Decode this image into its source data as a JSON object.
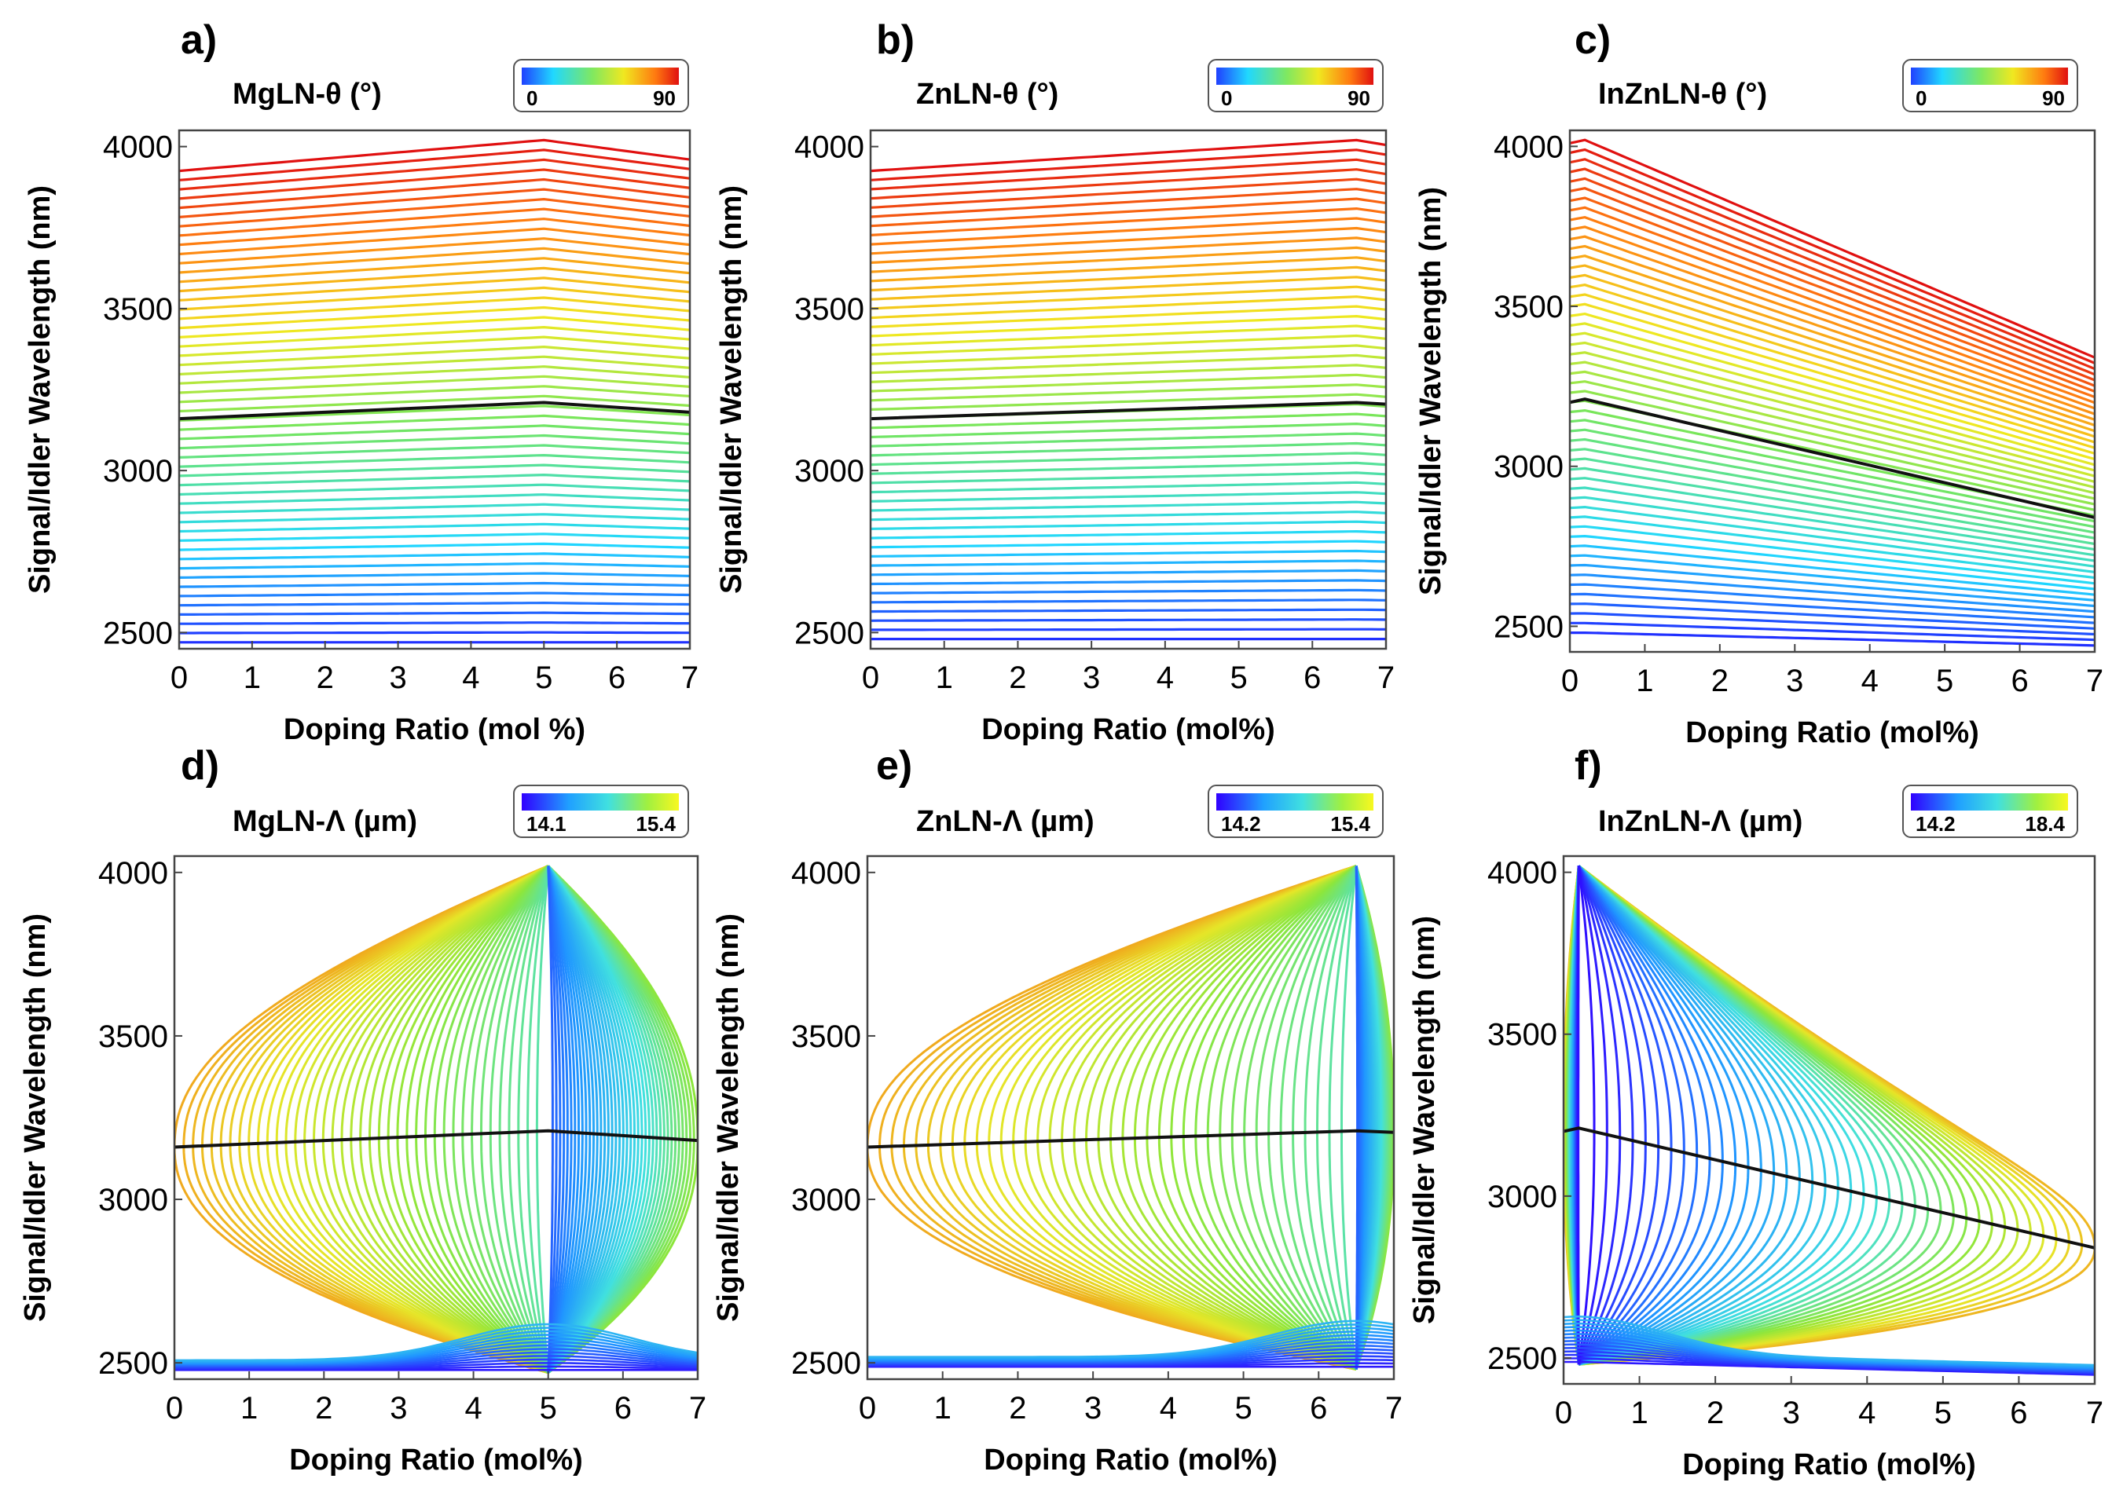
{
  "chart_data": [
    {
      "panel_label": "a)",
      "title": "MgLN-θ (°)",
      "type": "contour",
      "variable": "theta",
      "colorbar": {
        "min_label": "0",
        "max_label": "90",
        "colormap": "jet"
      },
      "xlabel": "Doping Ratio (mol %)",
      "ylabel": "Signal/Idler Wavelength (nm)",
      "xlim": [
        0,
        7
      ],
      "ylim": [
        2450,
        4050
      ],
      "xticks": [
        "0",
        "1",
        "2",
        "3",
        "4",
        "5",
        "6",
        "7"
      ],
      "yticks": [
        "2500",
        "3000",
        "3500",
        "4000"
      ],
      "x_ticks_values": [
        0,
        1,
        2,
        3,
        4,
        5,
        6,
        7
      ],
      "y_ticks_values": [
        2500,
        3000,
        3500,
        4000
      ],
      "degeneracy_line": {
        "x": [
          0,
          5,
          7
        ],
        "y": [
          3160,
          3210,
          3180
        ]
      },
      "knee_x": 5,
      "upper_edge": {
        "x": [
          0,
          5,
          7
        ],
        "y": [
          3925,
          4020,
          3960
        ]
      },
      "lower_edge": {
        "x": [
          0,
          5,
          7
        ],
        "y": [
          2470,
          2470,
          2470
        ]
      }
    },
    {
      "panel_label": "b)",
      "title": "ZnLN-θ (°)",
      "type": "contour",
      "variable": "theta",
      "colorbar": {
        "min_label": "0",
        "max_label": "90",
        "colormap": "jet"
      },
      "xlabel": "Doping Ratio (mol%)",
      "ylabel": "Signal/Idler Wavelength (nm)",
      "xlim": [
        0,
        7
      ],
      "ylim": [
        2450,
        4050
      ],
      "xticks": [
        "0",
        "1",
        "2",
        "3",
        "4",
        "5",
        "6",
        "7"
      ],
      "yticks": [
        "2500",
        "3000",
        "3500",
        "4000"
      ],
      "x_ticks_values": [
        0,
        1,
        2,
        3,
        4,
        5,
        6,
        7
      ],
      "y_ticks_values": [
        2500,
        3000,
        3500,
        4000
      ],
      "degeneracy_line": {
        "x": [
          0,
          6.6,
          7
        ],
        "y": [
          3160,
          3210,
          3205
        ]
      },
      "knee_x": 6.6,
      "upper_edge": {
        "x": [
          0,
          6.6,
          7
        ],
        "y": [
          3925,
          4020,
          4005
        ]
      },
      "lower_edge": {
        "x": [
          0,
          6.6,
          7
        ],
        "y": [
          2480,
          2480,
          2480
        ]
      }
    },
    {
      "panel_label": "c)",
      "title": "InZnLN-θ (°)",
      "type": "contour",
      "variable": "theta",
      "colorbar": {
        "min_label": "0",
        "max_label": "90",
        "colormap": "jet"
      },
      "xlabel": "Doping Ratio (mol%)",
      "ylabel": "Signal/Idler Wavelength (nm)",
      "xlim": [
        0,
        7
      ],
      "ylim": [
        2420,
        4050
      ],
      "xticks": [
        "0",
        "1",
        "2",
        "3",
        "4",
        "5",
        "6",
        "7"
      ],
      "yticks": [
        "2500",
        "3000",
        "3500",
        "4000"
      ],
      "x_ticks_values": [
        0,
        1,
        2,
        3,
        4,
        5,
        6,
        7
      ],
      "y_ticks_values": [
        2500,
        3000,
        3500,
        4000
      ],
      "degeneracy_line": {
        "x": [
          0,
          0.2,
          7
        ],
        "y": [
          3200,
          3210,
          2840
        ]
      },
      "knee_x": 0.2,
      "upper_edge": {
        "x": [
          0,
          0.2,
          7
        ],
        "y": [
          4010,
          4020,
          3340
        ]
      },
      "lower_edge": {
        "x": [
          0,
          0.2,
          7
        ],
        "y": [
          2480,
          2480,
          2440
        ]
      }
    },
    {
      "panel_label": "d)",
      "title": "MgLN-Λ (µm)",
      "type": "contour",
      "variable": "period",
      "colorbar": {
        "min_label": "14.1",
        "max_label": "15.4",
        "colormap": "jet-short"
      },
      "xlabel": "Doping Ratio (mol%)",
      "ylabel": "Signal/Idler Wavelength (nm)",
      "xlim": [
        0,
        7
      ],
      "ylim": [
        2450,
        4050
      ],
      "xticks": [
        "0",
        "1",
        "2",
        "3",
        "4",
        "5",
        "6",
        "7"
      ],
      "yticks": [
        "2500",
        "3000",
        "3500",
        "4000"
      ],
      "x_ticks_values": [
        0,
        1,
        2,
        3,
        4,
        5,
        6,
        7
      ],
      "y_ticks_values": [
        2500,
        3000,
        3500,
        4000
      ],
      "degeneracy_line": {
        "x": [
          0,
          5,
          7
        ],
        "y": [
          3160,
          3210,
          3180
        ]
      },
      "knee_x": 5,
      "upper_edge": {
        "x": [
          0,
          5,
          7
        ],
        "y": [
          3925,
          4020,
          3960
        ]
      },
      "lower_edge": {
        "x": [
          0,
          5,
          7
        ],
        "y": [
          2470,
          2470,
          2470
        ]
      }
    },
    {
      "panel_label": "e)",
      "title": "ZnLN-Λ (µm)",
      "type": "contour",
      "variable": "period",
      "colorbar": {
        "min_label": "14.2",
        "max_label": "15.4",
        "colormap": "jet-short"
      },
      "xlabel": "Doping Ratio (mol%)",
      "ylabel": "Signal/Idler Wavelength (nm)",
      "xlim": [
        0,
        7
      ],
      "ylim": [
        2450,
        4050
      ],
      "xticks": [
        "0",
        "1",
        "2",
        "3",
        "4",
        "5",
        "6",
        "7"
      ],
      "yticks": [
        "2500",
        "3000",
        "3500",
        "4000"
      ],
      "x_ticks_values": [
        0,
        1,
        2,
        3,
        4,
        5,
        6,
        7
      ],
      "y_ticks_values": [
        2500,
        3000,
        3500,
        4000
      ],
      "degeneracy_line": {
        "x": [
          0,
          6.5,
          7
        ],
        "y": [
          3160,
          3210,
          3205
        ]
      },
      "knee_x": 6.5,
      "upper_edge": {
        "x": [
          0,
          6.5,
          7
        ],
        "y": [
          3925,
          4020,
          4005
        ]
      },
      "lower_edge": {
        "x": [
          0,
          6.5,
          7
        ],
        "y": [
          2480,
          2480,
          2480
        ]
      }
    },
    {
      "panel_label": "f)",
      "title": "InZnLN-Λ (µm)",
      "type": "contour",
      "variable": "period",
      "colorbar": {
        "min_label": "14.2",
        "max_label": "18.4",
        "colormap": "jet-short"
      },
      "xlabel": "Doping Ratio (mol%)",
      "ylabel": "Signal/Idler Wavelength (nm)",
      "xlim": [
        0,
        7
      ],
      "ylim": [
        2420,
        4050
      ],
      "xticks": [
        "0",
        "1",
        "2",
        "3",
        "4",
        "5",
        "6",
        "7"
      ],
      "yticks": [
        "2500",
        "3000",
        "3500",
        "4000"
      ],
      "x_ticks_values": [
        0,
        1,
        2,
        3,
        4,
        5,
        6,
        7
      ],
      "y_ticks_values": [
        2500,
        3000,
        3500,
        4000
      ],
      "degeneracy_line": {
        "x": [
          0,
          0.2,
          7
        ],
        "y": [
          3200,
          3210,
          2840
        ]
      },
      "knee_x": 0.2,
      "upper_edge": {
        "x": [
          0,
          0.2,
          7
        ],
        "y": [
          4010,
          4020,
          3340
        ]
      },
      "lower_edge": {
        "x": [
          0,
          0.2,
          7
        ],
        "y": [
          2480,
          2480,
          2440
        ]
      }
    }
  ]
}
